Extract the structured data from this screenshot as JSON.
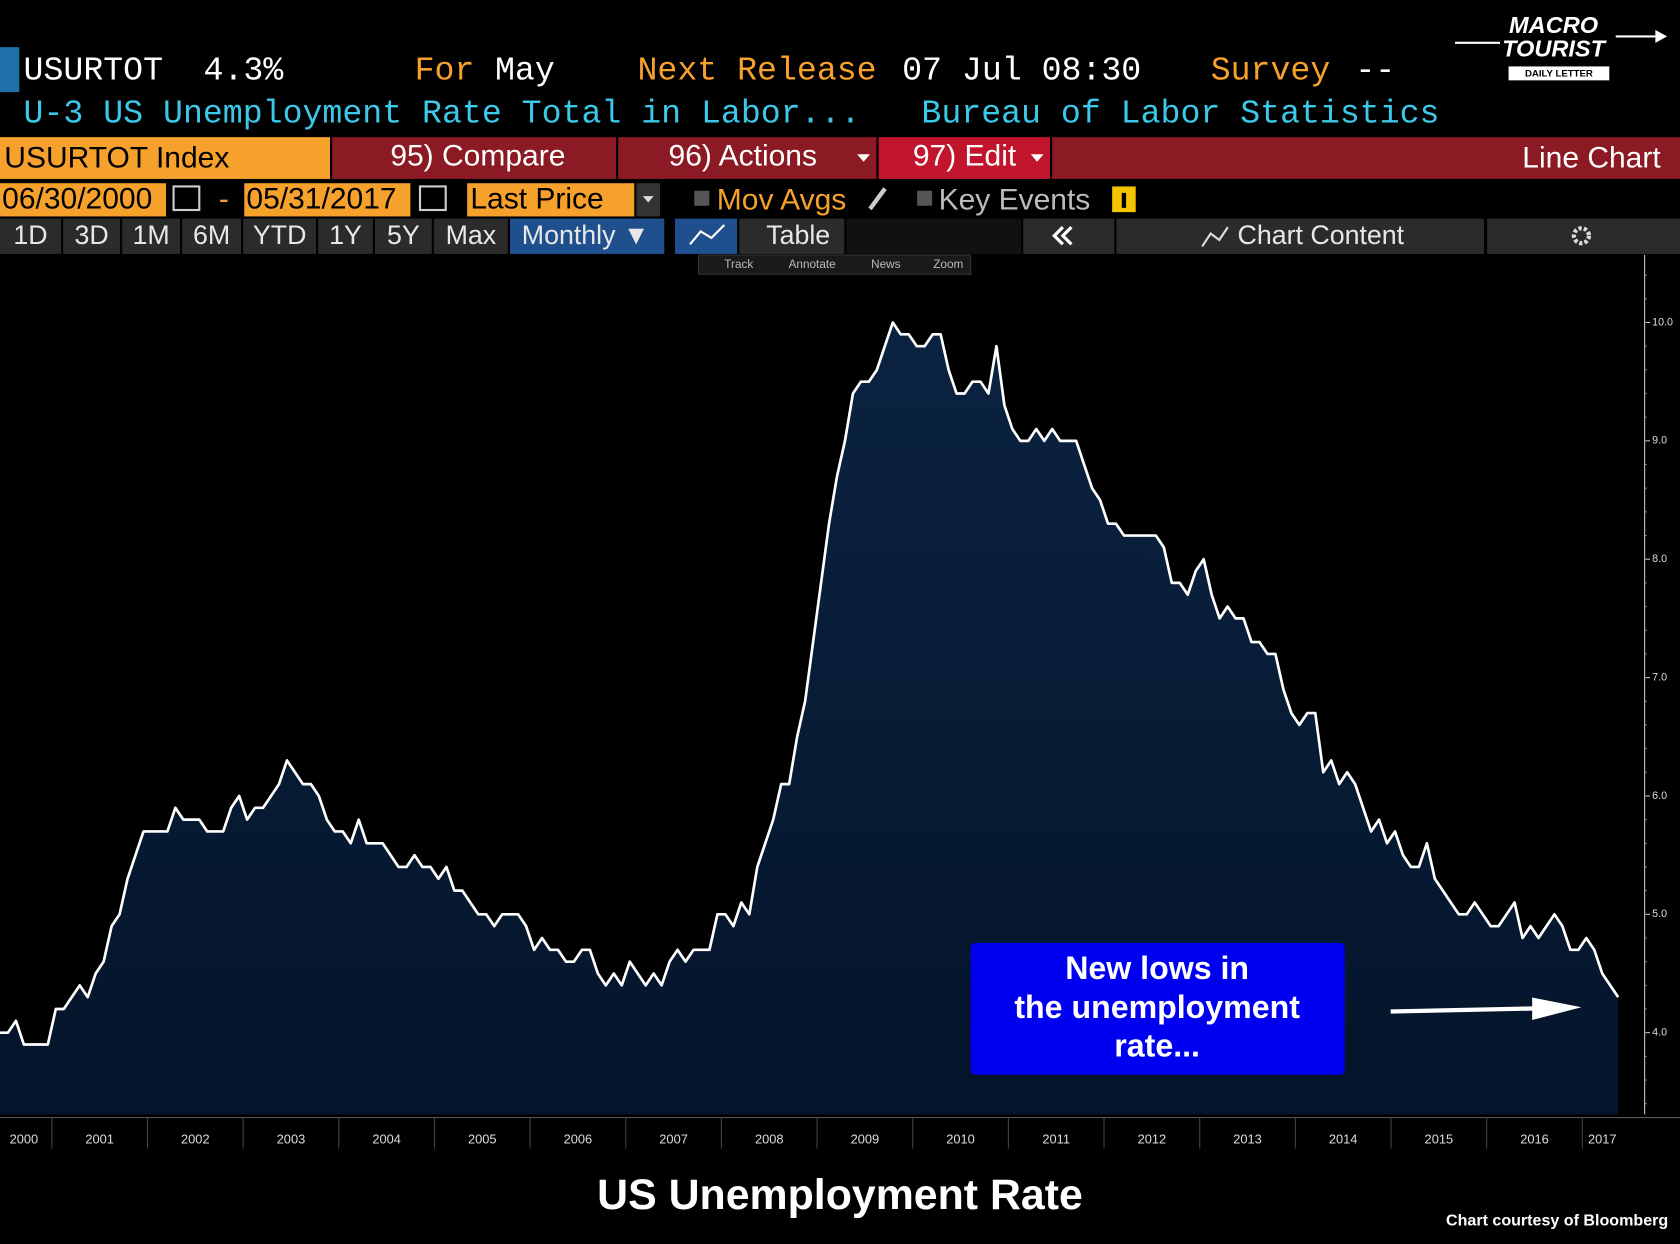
{
  "header": {
    "ticker": "USURTOT",
    "value": "4.3%",
    "for_label": "For",
    "for_value": "May",
    "release_label": "Next Release",
    "release_value": "07 Jul 08:30",
    "survey_label": "Survey",
    "survey_value": "--",
    "description": "U-3 US Unemployment Rate Total in Labor...",
    "source": "Bureau of Labor Statistics"
  },
  "logo": {
    "line1": "MACRO",
    "line2": "TOURIST",
    "line3": "DAILY LETTER"
  },
  "toolbar": {
    "security": "USURTOT Index",
    "compare": "95) Compare",
    "actions": "96) Actions",
    "edit": "97) Edit",
    "chart_type": "Line Chart",
    "start_date": "06/30/2000",
    "dash": "-",
    "end_date": "05/31/2017",
    "field": "Last Price",
    "mov_avgs": "Mov Avgs",
    "key_events": "Key Events",
    "periods": [
      "1D",
      "3D",
      "1M",
      "6M",
      "YTD",
      "1Y",
      "5Y",
      "Max"
    ],
    "frequency": "Monthly ▼",
    "table": "Table",
    "chart_content": "Chart Content",
    "tools": [
      "Track",
      "Annotate",
      "News",
      "Zoom"
    ]
  },
  "chart_data": {
    "type": "line",
    "title": "US Unemployment Rate",
    "credit": "Chart courtesy of Bloomberg",
    "annotation": [
      "New lows in",
      "the unemployment",
      "rate..."
    ],
    "color": "#ffffff",
    "fill": "#0b2341",
    "values": [
      4.0,
      4.0,
      4.1,
      3.9,
      3.9,
      3.9,
      3.9,
      4.2,
      4.2,
      4.3,
      4.4,
      4.3,
      4.5,
      4.6,
      4.9,
      5.0,
      5.3,
      5.5,
      5.7,
      5.7,
      5.7,
      5.7,
      5.9,
      5.8,
      5.8,
      5.8,
      5.7,
      5.7,
      5.7,
      5.9,
      6.0,
      5.8,
      5.9,
      5.9,
      6.0,
      6.1,
      6.3,
      6.2,
      6.1,
      6.1,
      6.0,
      5.8,
      5.7,
      5.7,
      5.6,
      5.8,
      5.6,
      5.6,
      5.6,
      5.5,
      5.4,
      5.4,
      5.5,
      5.4,
      5.4,
      5.3,
      5.4,
      5.2,
      5.2,
      5.1,
      5.0,
      5.0,
      4.9,
      5.0,
      5.0,
      5.0,
      4.9,
      4.7,
      4.8,
      4.7,
      4.7,
      4.6,
      4.6,
      4.7,
      4.7,
      4.5,
      4.4,
      4.5,
      4.4,
      4.6,
      4.5,
      4.4,
      4.5,
      4.4,
      4.6,
      4.7,
      4.6,
      4.7,
      4.7,
      4.7,
      5.0,
      5.0,
      4.9,
      5.1,
      5.0,
      5.4,
      5.6,
      5.8,
      6.1,
      6.1,
      6.5,
      6.8,
      7.3,
      7.8,
      8.3,
      8.7,
      9.0,
      9.4,
      9.5,
      9.5,
      9.6,
      9.8,
      10.0,
      9.9,
      9.9,
      9.8,
      9.8,
      9.9,
      9.9,
      9.6,
      9.4,
      9.4,
      9.5,
      9.5,
      9.4,
      9.8,
      9.3,
      9.1,
      9.0,
      9.0,
      9.1,
      9.0,
      9.1,
      9.0,
      9.0,
      9.0,
      8.8,
      8.6,
      8.5,
      8.3,
      8.3,
      8.2,
      8.2,
      8.2,
      8.2,
      8.2,
      8.1,
      7.8,
      7.8,
      7.7,
      7.9,
      8.0,
      7.7,
      7.5,
      7.6,
      7.5,
      7.5,
      7.3,
      7.3,
      7.2,
      7.2,
      6.9,
      6.7,
      6.6,
      6.7,
      6.7,
      6.2,
      6.3,
      6.1,
      6.2,
      6.1,
      5.9,
      5.7,
      5.8,
      5.6,
      5.7,
      5.5,
      5.4,
      5.4,
      5.6,
      5.3,
      5.2,
      5.1,
      5.0,
      5.0,
      5.1,
      5.0,
      4.9,
      4.9,
      5.0,
      5.1,
      4.8,
      4.9,
      4.8,
      4.9,
      5.0,
      4.9,
      4.7,
      4.7,
      4.8,
      4.7,
      4.5,
      4.4,
      4.3
    ],
    "xticks": [
      2000,
      2001,
      2002,
      2003,
      2004,
      2005,
      2006,
      2007,
      2008,
      2009,
      2010,
      2011,
      2012,
      2013,
      2014,
      2015,
      2016,
      2017
    ],
    "ylim": [
      3.31,
      10.57
    ],
    "yticks": [
      {
        "value": 4,
        "label": "4.0"
      },
      {
        "value": 5,
        "label": "5.0"
      },
      {
        "value": 6,
        "label": "6.0"
      },
      {
        "value": 7,
        "label": "7.0"
      },
      {
        "value": 8,
        "label": "8.0"
      },
      {
        "value": 9,
        "label": "9.0"
      },
      {
        "value": 10,
        "label": "10.0"
      }
    ]
  }
}
